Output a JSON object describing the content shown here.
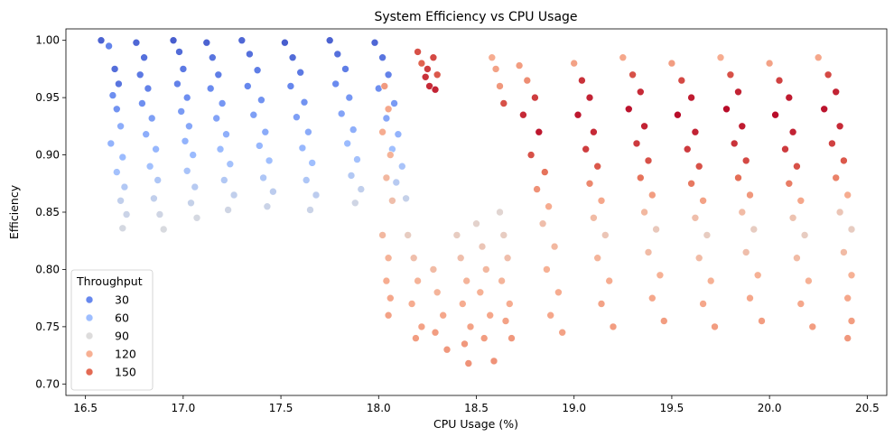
{
  "chart_data": {
    "type": "scatter",
    "title": "System Efficiency vs CPU Usage",
    "xlabel": "CPU Usage (%)",
    "ylabel": "Efficiency",
    "xlim": [
      16.4,
      20.6
    ],
    "ylim": [
      0.69,
      1.01
    ],
    "xticks": [
      16.5,
      17.0,
      17.5,
      18.0,
      18.5,
      19.0,
      19.5,
      20.0,
      20.5
    ],
    "xtick_labels": [
      "16.5",
      "17.0",
      "17.5",
      "18.0",
      "18.5",
      "19.0",
      "19.5",
      "20.0",
      "20.5"
    ],
    "yticks": [
      0.7,
      0.75,
      0.8,
      0.85,
      0.9,
      0.95,
      1.0
    ],
    "ytick_labels": [
      "0.70",
      "0.75",
      "0.80",
      "0.85",
      "0.90",
      "0.95",
      "1.00"
    ],
    "grid": false,
    "colormap": "coolwarm",
    "hue_range": [
      10,
      170
    ],
    "legend": {
      "title": "Throughput",
      "placement": "lower-left",
      "entries": [
        {
          "label": "30",
          "value": 30,
          "color": "#6788ee"
        },
        {
          "label": "60",
          "value": 60,
          "color": "#9ebeff"
        },
        {
          "label": "90",
          "value": 90,
          "color": "#dddcdc"
        },
        {
          "label": "120",
          "value": 120,
          "color": "#f7b093"
        },
        {
          "label": "150",
          "value": 150,
          "color": "#e36a53"
        }
      ]
    },
    "points": [
      [
        16.58,
        1.0,
        20
      ],
      [
        16.62,
        0.995,
        35
      ],
      [
        16.65,
        0.975,
        25
      ],
      [
        16.67,
        0.962,
        28
      ],
      [
        16.64,
        0.952,
        40
      ],
      [
        16.66,
        0.94,
        42
      ],
      [
        16.68,
        0.925,
        55
      ],
      [
        16.63,
        0.91,
        58
      ],
      [
        16.69,
        0.898,
        62
      ],
      [
        16.66,
        0.885,
        66
      ],
      [
        16.7,
        0.872,
        72
      ],
      [
        16.68,
        0.86,
        78
      ],
      [
        16.71,
        0.848,
        82
      ],
      [
        16.69,
        0.836,
        86
      ],
      [
        16.76,
        0.998,
        22
      ],
      [
        16.8,
        0.985,
        26
      ],
      [
        16.78,
        0.97,
        30
      ],
      [
        16.82,
        0.958,
        34
      ],
      [
        16.79,
        0.945,
        40
      ],
      [
        16.84,
        0.932,
        48
      ],
      [
        16.81,
        0.918,
        55
      ],
      [
        16.86,
        0.905,
        60
      ],
      [
        16.83,
        0.89,
        65
      ],
      [
        16.87,
        0.878,
        70
      ],
      [
        16.85,
        0.862,
        78
      ],
      [
        16.88,
        0.848,
        84
      ],
      [
        16.9,
        0.835,
        88
      ],
      [
        16.95,
        1.0,
        18
      ],
      [
        16.98,
        0.99,
        24
      ],
      [
        17.0,
        0.975,
        30
      ],
      [
        16.97,
        0.962,
        34
      ],
      [
        17.02,
        0.95,
        40
      ],
      [
        16.99,
        0.938,
        46
      ],
      [
        17.03,
        0.925,
        52
      ],
      [
        17.01,
        0.912,
        58
      ],
      [
        17.05,
        0.9,
        62
      ],
      [
        17.02,
        0.886,
        68
      ],
      [
        17.06,
        0.872,
        74
      ],
      [
        17.04,
        0.858,
        80
      ],
      [
        17.07,
        0.845,
        86
      ],
      [
        17.12,
        0.998,
        20
      ],
      [
        17.15,
        0.985,
        28
      ],
      [
        17.18,
        0.97,
        32
      ],
      [
        17.14,
        0.958,
        38
      ],
      [
        17.2,
        0.945,
        44
      ],
      [
        17.17,
        0.932,
        50
      ],
      [
        17.22,
        0.918,
        56
      ],
      [
        17.19,
        0.905,
        62
      ],
      [
        17.24,
        0.892,
        66
      ],
      [
        17.21,
        0.878,
        72
      ],
      [
        17.26,
        0.865,
        78
      ],
      [
        17.23,
        0.852,
        84
      ],
      [
        17.3,
        1.0,
        22
      ],
      [
        17.34,
        0.988,
        26
      ],
      [
        17.38,
        0.974,
        32
      ],
      [
        17.33,
        0.96,
        36
      ],
      [
        17.4,
        0.948,
        42
      ],
      [
        17.36,
        0.935,
        48
      ],
      [
        17.42,
        0.92,
        54
      ],
      [
        17.39,
        0.908,
        60
      ],
      [
        17.44,
        0.895,
        64
      ],
      [
        17.41,
        0.88,
        70
      ],
      [
        17.46,
        0.868,
        76
      ],
      [
        17.43,
        0.855,
        82
      ],
      [
        17.52,
        0.998,
        18
      ],
      [
        17.56,
        0.985,
        24
      ],
      [
        17.6,
        0.972,
        30
      ],
      [
        17.55,
        0.96,
        36
      ],
      [
        17.62,
        0.946,
        42
      ],
      [
        17.58,
        0.933,
        48
      ],
      [
        17.64,
        0.92,
        54
      ],
      [
        17.61,
        0.906,
        60
      ],
      [
        17.66,
        0.893,
        64
      ],
      [
        17.63,
        0.878,
        70
      ],
      [
        17.68,
        0.865,
        76
      ],
      [
        17.65,
        0.852,
        82
      ],
      [
        17.75,
        1.0,
        20
      ],
      [
        17.79,
        0.988,
        26
      ],
      [
        17.83,
        0.975,
        32
      ],
      [
        17.78,
        0.962,
        38
      ],
      [
        17.85,
        0.95,
        44
      ],
      [
        17.81,
        0.936,
        50
      ],
      [
        17.87,
        0.922,
        56
      ],
      [
        17.84,
        0.91,
        62
      ],
      [
        17.89,
        0.896,
        66
      ],
      [
        17.86,
        0.882,
        72
      ],
      [
        17.91,
        0.87,
        78
      ],
      [
        17.88,
        0.858,
        84
      ],
      [
        17.98,
        0.998,
        22
      ],
      [
        18.02,
        0.985,
        28
      ],
      [
        18.05,
        0.97,
        34
      ],
      [
        18.0,
        0.958,
        40
      ],
      [
        18.08,
        0.945,
        46
      ],
      [
        18.04,
        0.932,
        52
      ],
      [
        18.1,
        0.918,
        58
      ],
      [
        18.07,
        0.905,
        64
      ],
      [
        18.12,
        0.89,
        68
      ],
      [
        18.09,
        0.876,
        74
      ],
      [
        18.14,
        0.862,
        80
      ],
      [
        18.2,
        0.99,
        150
      ],
      [
        18.22,
        0.98,
        145
      ],
      [
        18.25,
        0.975,
        155
      ],
      [
        18.28,
        0.985,
        152
      ],
      [
        18.3,
        0.97,
        148
      ],
      [
        18.26,
        0.96,
        160
      ],
      [
        18.24,
        0.968,
        158
      ],
      [
        18.29,
        0.957,
        162
      ],
      [
        18.03,
        0.96,
        125
      ],
      [
        18.05,
        0.94,
        120
      ],
      [
        18.02,
        0.92,
        118
      ],
      [
        18.06,
        0.9,
        115
      ],
      [
        18.04,
        0.88,
        112
      ],
      [
        18.07,
        0.86,
        108
      ],
      [
        18.02,
        0.83,
        112
      ],
      [
        18.05,
        0.81,
        115
      ],
      [
        18.04,
        0.79,
        118
      ],
      [
        18.06,
        0.775,
        120
      ],
      [
        18.05,
        0.76,
        122
      ],
      [
        18.15,
        0.83,
        100
      ],
      [
        18.18,
        0.81,
        108
      ],
      [
        18.2,
        0.79,
        115
      ],
      [
        18.17,
        0.77,
        118
      ],
      [
        18.22,
        0.75,
        122
      ],
      [
        18.19,
        0.74,
        124
      ],
      [
        18.28,
        0.8,
        110
      ],
      [
        18.3,
        0.78,
        114
      ],
      [
        18.33,
        0.76,
        120
      ],
      [
        18.29,
        0.745,
        124
      ],
      [
        18.35,
        0.73,
        126
      ],
      [
        18.4,
        0.83,
        100
      ],
      [
        18.42,
        0.81,
        108
      ],
      [
        18.45,
        0.79,
        114
      ],
      [
        18.43,
        0.77,
        118
      ],
      [
        18.47,
        0.75,
        122
      ],
      [
        18.44,
        0.735,
        126
      ],
      [
        18.46,
        0.718,
        128
      ],
      [
        18.5,
        0.84,
        96
      ],
      [
        18.53,
        0.82,
        104
      ],
      [
        18.55,
        0.8,
        112
      ],
      [
        18.52,
        0.78,
        116
      ],
      [
        18.57,
        0.76,
        120
      ],
      [
        18.54,
        0.74,
        124
      ],
      [
        18.59,
        0.72,
        128
      ],
      [
        18.62,
        0.85,
        94
      ],
      [
        18.64,
        0.83,
        100
      ],
      [
        18.66,
        0.81,
        108
      ],
      [
        18.63,
        0.79,
        114
      ],
      [
        18.67,
        0.77,
        118
      ],
      [
        18.65,
        0.755,
        122
      ],
      [
        18.68,
        0.74,
        126
      ],
      [
        18.58,
        0.985,
        118
      ],
      [
        18.6,
        0.975,
        122
      ],
      [
        18.62,
        0.96,
        126
      ],
      [
        18.64,
        0.945,
        150
      ],
      [
        18.72,
        0.978,
        124
      ],
      [
        18.76,
        0.965,
        130
      ],
      [
        18.8,
        0.95,
        155
      ],
      [
        18.74,
        0.935,
        160
      ],
      [
        18.82,
        0.92,
        165
      ],
      [
        18.78,
        0.9,
        150
      ],
      [
        18.85,
        0.885,
        140
      ],
      [
        18.81,
        0.87,
        128
      ],
      [
        18.87,
        0.855,
        118
      ],
      [
        18.84,
        0.84,
        108
      ],
      [
        18.9,
        0.82,
        112
      ],
      [
        18.86,
        0.8,
        116
      ],
      [
        18.92,
        0.78,
        118
      ],
      [
        18.88,
        0.76,
        120
      ],
      [
        18.94,
        0.745,
        122
      ],
      [
        19.0,
        0.98,
        122
      ],
      [
        19.04,
        0.965,
        158
      ],
      [
        19.08,
        0.95,
        162
      ],
      [
        19.02,
        0.935,
        165
      ],
      [
        19.1,
        0.92,
        160
      ],
      [
        19.06,
        0.905,
        155
      ],
      [
        19.12,
        0.89,
        148
      ],
      [
        19.08,
        0.875,
        132
      ],
      [
        19.14,
        0.86,
        120
      ],
      [
        19.1,
        0.845,
        110
      ],
      [
        19.16,
        0.83,
        104
      ],
      [
        19.12,
        0.81,
        114
      ],
      [
        19.18,
        0.79,
        118
      ],
      [
        19.14,
        0.77,
        122
      ],
      [
        19.2,
        0.75,
        124
      ],
      [
        19.25,
        0.985,
        120
      ],
      [
        19.3,
        0.97,
        150
      ],
      [
        19.34,
        0.955,
        160
      ],
      [
        19.28,
        0.94,
        166
      ],
      [
        19.36,
        0.925,
        162
      ],
      [
        19.32,
        0.91,
        156
      ],
      [
        19.38,
        0.895,
        150
      ],
      [
        19.34,
        0.88,
        140
      ],
      [
        19.4,
        0.865,
        124
      ],
      [
        19.36,
        0.85,
        112
      ],
      [
        19.42,
        0.835,
        102
      ],
      [
        19.38,
        0.815,
        110
      ],
      [
        19.44,
        0.795,
        116
      ],
      [
        19.4,
        0.775,
        120
      ],
      [
        19.46,
        0.755,
        124
      ],
      [
        19.5,
        0.98,
        124
      ],
      [
        19.55,
        0.965,
        152
      ],
      [
        19.6,
        0.95,
        164
      ],
      [
        19.53,
        0.935,
        168
      ],
      [
        19.62,
        0.92,
        162
      ],
      [
        19.58,
        0.905,
        156
      ],
      [
        19.64,
        0.89,
        150
      ],
      [
        19.6,
        0.875,
        138
      ],
      [
        19.66,
        0.86,
        122
      ],
      [
        19.62,
        0.845,
        108
      ],
      [
        19.68,
        0.83,
        100
      ],
      [
        19.64,
        0.81,
        110
      ],
      [
        19.7,
        0.79,
        116
      ],
      [
        19.66,
        0.77,
        120
      ],
      [
        19.72,
        0.75,
        124
      ],
      [
        19.75,
        0.985,
        118
      ],
      [
        19.8,
        0.97,
        150
      ],
      [
        19.84,
        0.955,
        162
      ],
      [
        19.78,
        0.94,
        168
      ],
      [
        19.86,
        0.925,
        164
      ],
      [
        19.82,
        0.91,
        158
      ],
      [
        19.88,
        0.895,
        152
      ],
      [
        19.84,
        0.88,
        142
      ],
      [
        19.9,
        0.865,
        126
      ],
      [
        19.86,
        0.85,
        110
      ],
      [
        19.92,
        0.835,
        100
      ],
      [
        19.88,
        0.815,
        108
      ],
      [
        19.94,
        0.795,
        116
      ],
      [
        19.9,
        0.775,
        120
      ],
      [
        19.96,
        0.755,
        124
      ],
      [
        20.0,
        0.98,
        122
      ],
      [
        20.05,
        0.965,
        154
      ],
      [
        20.1,
        0.95,
        164
      ],
      [
        20.03,
        0.935,
        168
      ],
      [
        20.12,
        0.92,
        162
      ],
      [
        20.08,
        0.905,
        156
      ],
      [
        20.14,
        0.89,
        150
      ],
      [
        20.1,
        0.875,
        136
      ],
      [
        20.16,
        0.86,
        120
      ],
      [
        20.12,
        0.845,
        106
      ],
      [
        20.18,
        0.83,
        100
      ],
      [
        20.14,
        0.81,
        110
      ],
      [
        20.2,
        0.79,
        116
      ],
      [
        20.16,
        0.77,
        120
      ],
      [
        20.22,
        0.75,
        124
      ],
      [
        20.25,
        0.985,
        120
      ],
      [
        20.3,
        0.97,
        152
      ],
      [
        20.34,
        0.955,
        162
      ],
      [
        20.28,
        0.94,
        166
      ],
      [
        20.36,
        0.925,
        160
      ],
      [
        20.32,
        0.91,
        154
      ],
      [
        20.38,
        0.895,
        148
      ],
      [
        20.34,
        0.88,
        134
      ],
      [
        20.4,
        0.865,
        118
      ],
      [
        20.36,
        0.85,
        104
      ],
      [
        20.42,
        0.835,
        100
      ],
      [
        20.38,
        0.815,
        110
      ],
      [
        20.42,
        0.795,
        116
      ],
      [
        20.4,
        0.775,
        120
      ],
      [
        20.42,
        0.755,
        124
      ],
      [
        20.4,
        0.74,
        126
      ]
    ]
  }
}
